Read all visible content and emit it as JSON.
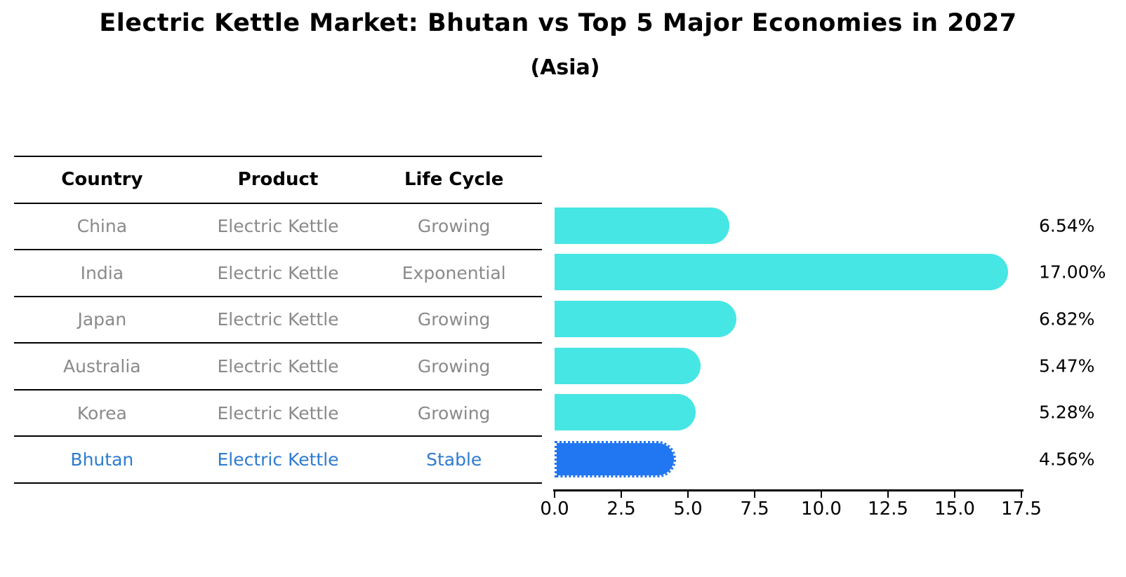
{
  "title": "Electric Kettle Market: Bhutan vs Top 5 Major Economies in 2027",
  "subtitle": "(Asia)",
  "table": {
    "headers": [
      "Country",
      "Product",
      "Life Cycle"
    ],
    "rows": [
      {
        "country": "China",
        "product": "Electric Kettle",
        "life_cycle": "Growing",
        "highlight": false
      },
      {
        "country": "India",
        "product": "Electric Kettle",
        "life_cycle": "Exponential",
        "highlight": false
      },
      {
        "country": "Japan",
        "product": "Electric Kettle",
        "life_cycle": "Growing",
        "highlight": false
      },
      {
        "country": "Australia",
        "product": "Electric Kettle",
        "life_cycle": "Growing",
        "highlight": false
      },
      {
        "country": "Korea",
        "product": "Electric Kettle",
        "life_cycle": "Growing",
        "highlight": false
      },
      {
        "country": "Bhutan",
        "product": "Electric Kettle",
        "life_cycle": "Stable",
        "highlight": true
      }
    ]
  },
  "chart_data": {
    "type": "bar",
    "orientation": "horizontal",
    "title": "Electric Kettle Market: Bhutan vs Top 5 Major Economies in 2027",
    "subtitle": "(Asia)",
    "categories": [
      "China",
      "India",
      "Japan",
      "Australia",
      "Korea",
      "Bhutan"
    ],
    "values": [
      6.54,
      17.0,
      6.82,
      5.47,
      5.28,
      4.56
    ],
    "value_labels": [
      "6.54%",
      "17.00%",
      "6.82%",
      "5.47%",
      "5.28%",
      "4.56%"
    ],
    "highlight_index": 5,
    "xlim": [
      0,
      17.5
    ],
    "x_ticks": [
      0.0,
      2.5,
      5.0,
      7.5,
      10.0,
      12.5,
      15.0,
      17.5
    ],
    "x_tick_labels": [
      "0.0",
      "2.5",
      "5.0",
      "7.5",
      "10.0",
      "12.5",
      "15.0",
      "17.5"
    ],
    "grid": false,
    "legend": false,
    "xlabel": "",
    "ylabel": "",
    "bar_color": "#46e6e4",
    "highlight_bar_color": "#2176f2",
    "highlight_text_color": "#2e7bd0",
    "table_text_color": "#8a8a8a"
  }
}
